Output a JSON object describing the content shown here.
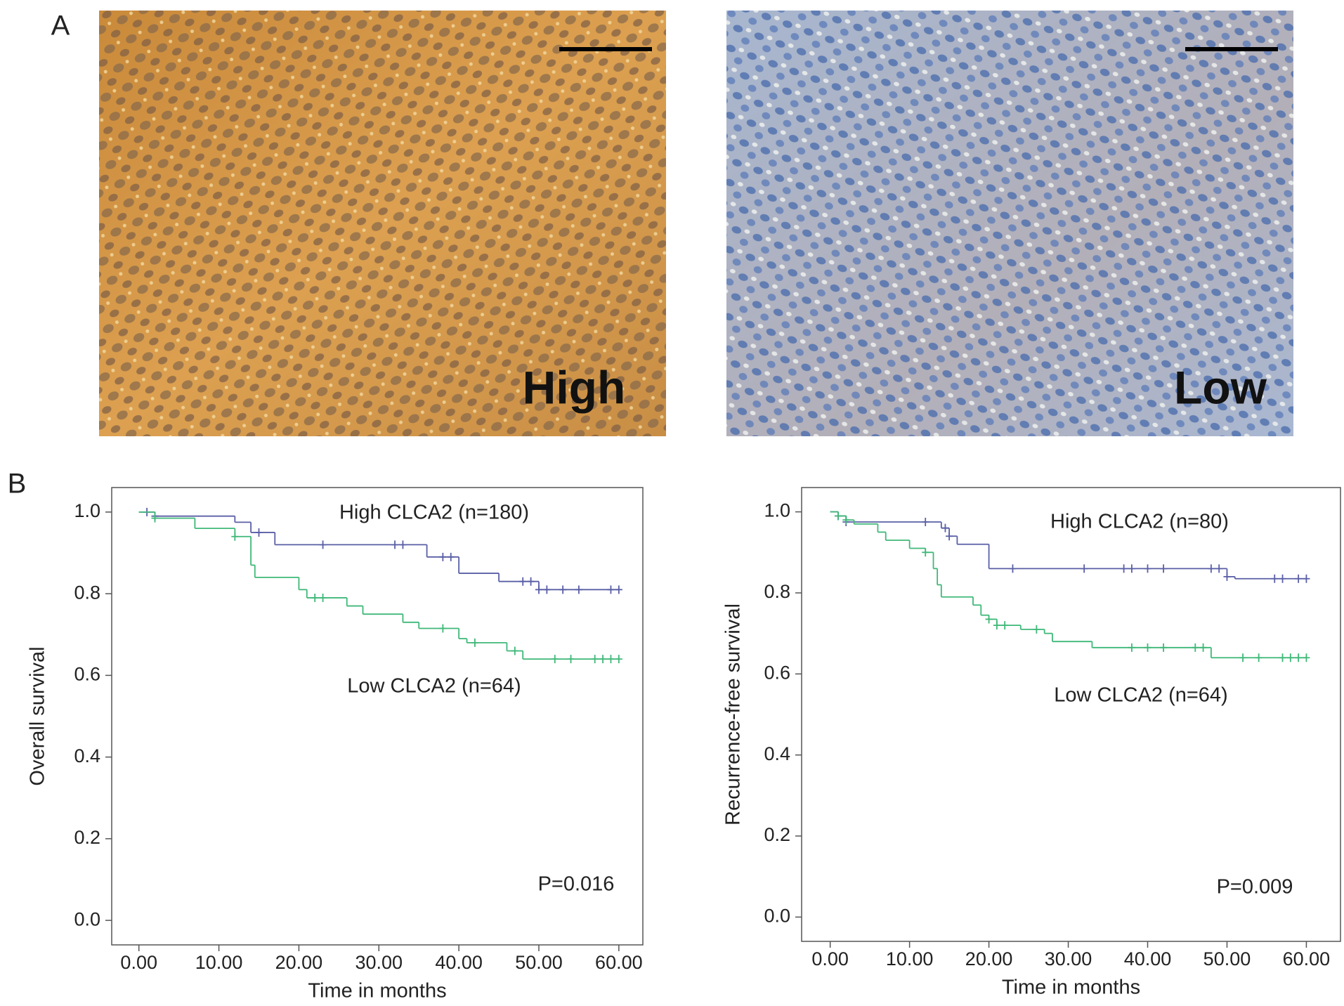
{
  "panel_labels": [
    "A",
    "B"
  ],
  "image_labels": [
    "High",
    "Low"
  ],
  "chart_data": [
    {
      "type": "step",
      "ylabel": "Overall survival",
      "xlabel": "Time in months",
      "annotation": "P=0.016",
      "xlim": [
        -3.4,
        63
      ],
      "ylim": [
        -0.06,
        1.06
      ],
      "xticks": [
        {
          "value": 0,
          "label": "0.00"
        },
        {
          "value": 10,
          "label": "10.00"
        },
        {
          "value": 20,
          "label": "20.00"
        },
        {
          "value": 30,
          "label": "30.00"
        },
        {
          "value": 40,
          "label": "40.00"
        },
        {
          "value": 50,
          "label": "50.00"
        },
        {
          "value": 60,
          "label": "60.00"
        }
      ],
      "yticks": [
        {
          "value": 0,
          "label": "0.0"
        },
        0.2,
        0.4,
        0.6,
        0.8,
        {
          "value": 1,
          "label": "1.0"
        }
      ],
      "series": [
        {
          "name": "High CLCA2 (n=180)",
          "color": "#5a5fa6",
          "x": [
            0,
            2,
            12,
            14,
            17,
            36,
            40,
            45,
            50,
            60
          ],
          "values": [
            1,
            0.99,
            0.975,
            0.95,
            0.92,
            0.89,
            0.85,
            0.83,
            0.81,
            0.81
          ],
          "censored_x": [
            1,
            2,
            15,
            23,
            32,
            33,
            38,
            39,
            48,
            49,
            50,
            51,
            53,
            55,
            59,
            60
          ],
          "censored_values": [
            1,
            0.99,
            0.95,
            0.92,
            0.92,
            0.92,
            0.89,
            0.89,
            0.83,
            0.83,
            0.81,
            0.81,
            0.81,
            0.81,
            0.81,
            0.81
          ]
        },
        {
          "name": "Low CLCA2 (n=64)",
          "color": "#3fb878",
          "x": [
            0,
            2,
            7,
            12,
            14,
            14.5,
            20,
            21,
            26,
            28,
            33,
            35,
            40,
            41,
            46,
            48,
            60
          ],
          "values": [
            1,
            0.985,
            0.96,
            0.94,
            0.87,
            0.84,
            0.81,
            0.79,
            0.77,
            0.75,
            0.73,
            0.715,
            0.69,
            0.68,
            0.66,
            0.64,
            0.64
          ],
          "censored_x": [
            2,
            12,
            22,
            23,
            38,
            42,
            47,
            52,
            54,
            57,
            58,
            59,
            60
          ],
          "censored_values": [
            0.985,
            0.94,
            0.79,
            0.79,
            0.715,
            0.68,
            0.66,
            0.64,
            0.64,
            0.64,
            0.64,
            0.64,
            0.64
          ]
        }
      ]
    },
    {
      "type": "step",
      "ylabel": "Recurrence-free survival",
      "xlabel": "Time in months",
      "annotation": "P=0.009",
      "xlim": [
        -3.6,
        64.3
      ],
      "ylim": [
        -0.06,
        1.06
      ],
      "xticks": [
        {
          "value": 0,
          "label": "0.00"
        },
        {
          "value": 10,
          "label": "10.00"
        },
        {
          "value": 20,
          "label": "20.00"
        },
        {
          "value": 30,
          "label": "30.00"
        },
        {
          "value": 40,
          "label": "40.00"
        },
        {
          "value": 50,
          "label": "50.00"
        },
        {
          "value": 60,
          "label": "60.00"
        }
      ],
      "yticks": [
        {
          "value": 0,
          "label": "0.0"
        },
        0.2,
        0.4,
        0.6,
        0.8,
        {
          "value": 1,
          "label": "1.0"
        }
      ],
      "series": [
        {
          "name": "High CLCA2 (n=80)",
          "color": "#5a5fa6",
          "x": [
            0,
            1,
            2,
            14,
            15,
            16,
            20,
            50,
            51,
            60
          ],
          "values": [
            1,
            0.99,
            0.975,
            0.96,
            0.94,
            0.92,
            0.86,
            0.84,
            0.835,
            0.835
          ],
          "censored_x": [
            1,
            2,
            12,
            14.5,
            15,
            23,
            32,
            37,
            38,
            40,
            42,
            48,
            49,
            50,
            56,
            57,
            59,
            60
          ],
          "censored_values": [
            0.99,
            0.975,
            0.975,
            0.96,
            0.94,
            0.86,
            0.86,
            0.86,
            0.86,
            0.86,
            0.86,
            0.86,
            0.86,
            0.84,
            0.835,
            0.835,
            0.835,
            0.835
          ]
        },
        {
          "name": "Low CLCA2 (n=64)",
          "color": "#3fb878",
          "x": [
            0,
            1,
            2,
            3,
            6,
            7,
            10,
            12,
            13,
            13.5,
            14,
            18,
            19,
            20,
            21,
            24,
            27,
            28,
            33,
            48,
            60
          ],
          "values": [
            1,
            0.99,
            0.98,
            0.97,
            0.95,
            0.93,
            0.91,
            0.9,
            0.86,
            0.82,
            0.79,
            0.77,
            0.745,
            0.735,
            0.72,
            0.71,
            0.7,
            0.68,
            0.665,
            0.64,
            0.64
          ],
          "censored_x": [
            1,
            2,
            12,
            20,
            21,
            22,
            26,
            38,
            40,
            42,
            46,
            47,
            52,
            54,
            57,
            58,
            59,
            60
          ],
          "censored_values": [
            0.99,
            0.98,
            0.9,
            0.735,
            0.72,
            0.72,
            0.71,
            0.665,
            0.665,
            0.665,
            0.665,
            0.665,
            0.64,
            0.64,
            0.64,
            0.64,
            0.64,
            0.64
          ]
        }
      ]
    }
  ]
}
